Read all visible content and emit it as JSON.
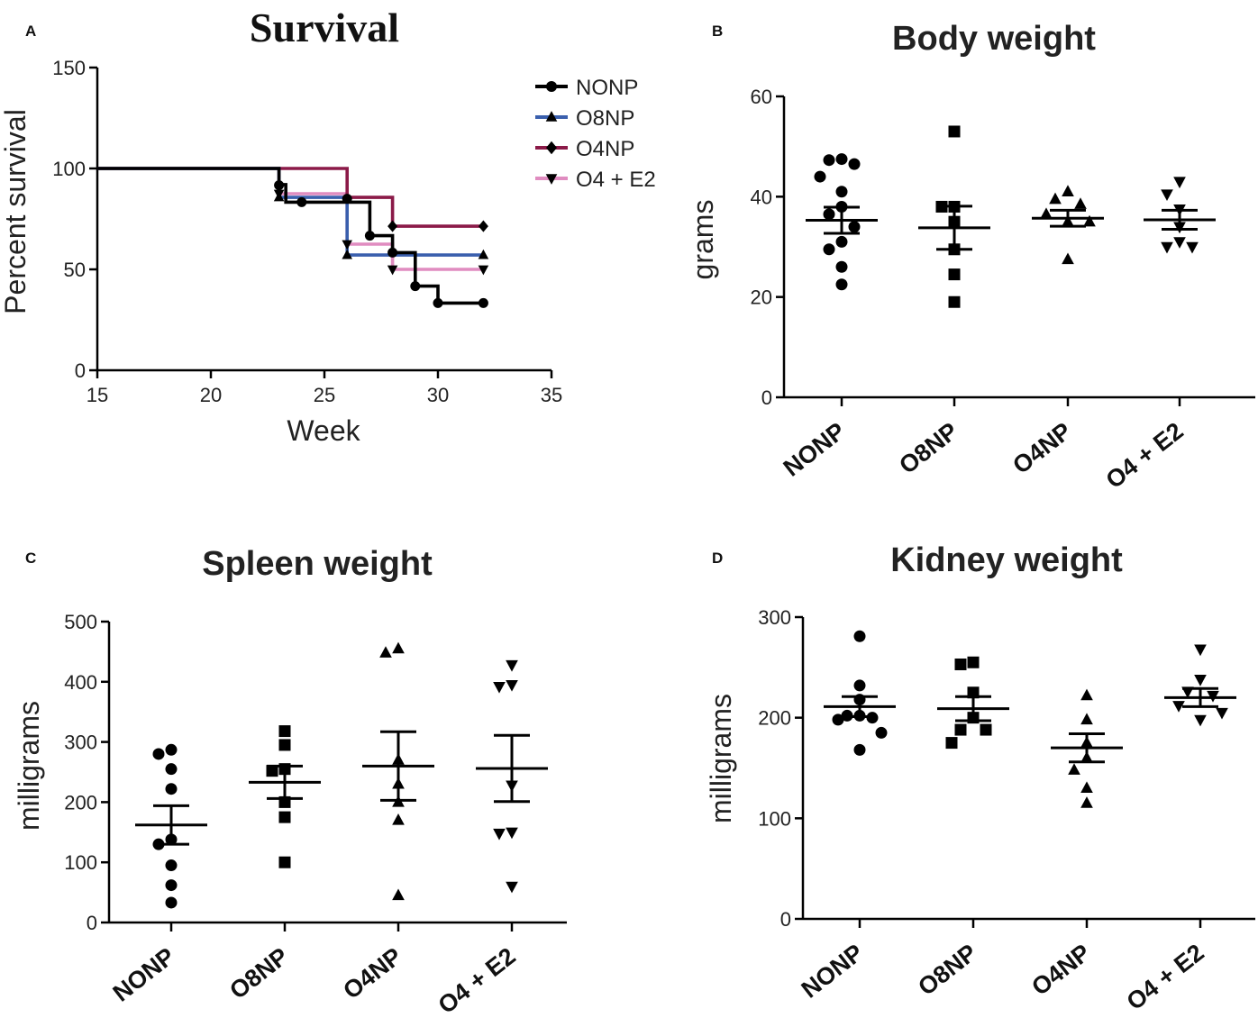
{
  "chart_data": [
    {
      "panel": "A",
      "type": "line",
      "title": "Survival",
      "xlabel": "Week",
      "ylabel": "Percent survival",
      "xlim": [
        15,
        35
      ],
      "ylim": [
        0,
        150
      ],
      "xticks": [
        15,
        20,
        25,
        30,
        35
      ],
      "yticks": [
        0,
        50,
        100,
        150
      ],
      "legend_position": "top-right",
      "series": [
        {
          "name": "NONP",
          "color": "#000000",
          "marker": "circle",
          "steps": [
            [
              15,
              100
            ],
            [
              23,
              92
            ],
            [
              23.3,
              83.3
            ],
            [
              26,
              83.3
            ],
            [
              27,
              66.7
            ],
            [
              28,
              58.3
            ],
            [
              29,
              41.7
            ],
            [
              30,
              33.3
            ],
            [
              32,
              33.3
            ]
          ],
          "censored": [
            [
              23,
              91.7
            ],
            [
              24,
              83.3
            ],
            [
              26,
              85
            ],
            [
              27,
              66.7
            ],
            [
              28,
              58.3
            ],
            [
              29,
              41.7
            ],
            [
              30,
              33.3
            ],
            [
              32,
              33.3
            ]
          ]
        },
        {
          "name": "O8NP",
          "color": "#3a5fad",
          "marker": "triangle-up",
          "steps": [
            [
              15,
              100
            ],
            [
              23,
              85.7
            ],
            [
              26,
              57.1
            ],
            [
              32,
              57.1
            ]
          ],
          "censored": [
            [
              23,
              85.7
            ],
            [
              26,
              57.1
            ],
            [
              32,
              57.1
            ]
          ]
        },
        {
          "name": "O4NP",
          "color": "#8b1a48",
          "marker": "diamond",
          "steps": [
            [
              15,
              100
            ],
            [
              26,
              85.7
            ],
            [
              28,
              71.4
            ],
            [
              32,
              71.4
            ]
          ],
          "censored": [
            [
              28,
              71.4
            ],
            [
              32,
              71.4
            ]
          ]
        },
        {
          "name": "O4 + E2",
          "color": "#e08cc0",
          "marker": "triangle-down",
          "steps": [
            [
              15,
              100
            ],
            [
              23,
              87.5
            ],
            [
              26,
              62.5
            ],
            [
              28,
              50
            ],
            [
              32,
              50
            ]
          ],
          "censored": [
            [
              23,
              87.5
            ],
            [
              26,
              62.5
            ],
            [
              28,
              50
            ],
            [
              32,
              50
            ]
          ]
        }
      ]
    },
    {
      "panel": "B",
      "type": "scatter",
      "title": "Body weight",
      "ylabel": "grams",
      "ylim": [
        0,
        60
      ],
      "yticks": [
        0,
        20,
        40,
        60
      ],
      "categories": [
        "NONP",
        "O8NP",
        "O4NP",
        "O4 + E2"
      ],
      "markers": [
        "circle",
        "square",
        "triangle-up",
        "triangle-down"
      ],
      "points": [
        [
          47.5,
          47.3,
          46.5,
          44,
          41,
          38,
          36.5,
          34,
          31,
          29.5,
          26,
          22.5
        ],
        [
          53,
          38,
          38,
          35,
          29.5,
          24.5,
          19
        ],
        [
          41,
          39.5,
          38.5,
          36.5,
          35,
          35,
          27.5
        ],
        [
          43,
          40.5,
          37.5,
          34,
          31,
          30,
          30
        ]
      ],
      "mean": [
        35.3,
        33.8,
        35.7,
        35.4
      ],
      "sem": [
        2.6,
        4.3,
        1.6,
        1.9
      ]
    },
    {
      "panel": "C",
      "type": "scatter",
      "title": "Spleen weight",
      "ylabel": "milligrams",
      "ylim": [
        0,
        500
      ],
      "yticks": [
        0,
        100,
        200,
        300,
        400,
        500
      ],
      "categories": [
        "NONP",
        "O8NP",
        "O4NP",
        "O4 + E2"
      ],
      "markers": [
        "circle",
        "square",
        "triangle-up",
        "triangle-down"
      ],
      "points": [
        [
          287,
          280,
          255,
          222,
          138,
          130,
          95,
          62,
          33
        ],
        [
          318,
          295,
          255,
          252,
          200,
          175,
          100
        ],
        [
          455,
          448,
          270,
          230,
          200,
          170,
          45
        ],
        [
          428,
          395,
          392,
          228,
          150,
          148,
          60
        ]
      ],
      "mean": [
        162,
        233,
        260,
        256
      ],
      "sem": [
        32,
        27,
        57,
        55
      ]
    },
    {
      "panel": "D",
      "type": "scatter",
      "title": "Kidney weight",
      "ylabel": "milligrams",
      "ylim": [
        0,
        300
      ],
      "yticks": [
        0,
        100,
        200,
        300
      ],
      "categories": [
        "NONP",
        "O8NP",
        "O4NP",
        "O4 + E2"
      ],
      "markers": [
        "circle",
        "square",
        "triangle-up",
        "triangle-down"
      ],
      "points": [
        [
          281,
          232,
          218,
          202,
          202,
          200,
          198,
          185,
          168
        ],
        [
          255,
          253,
          225,
          200,
          188,
          188,
          175
        ],
        [
          222,
          198,
          175,
          160,
          148,
          130,
          115
        ],
        [
          268,
          238,
          226,
          222,
          212,
          205,
          198
        ]
      ],
      "mean": [
        211,
        209,
        170,
        220
      ],
      "sem": [
        10,
        12,
        14,
        9
      ]
    }
  ]
}
